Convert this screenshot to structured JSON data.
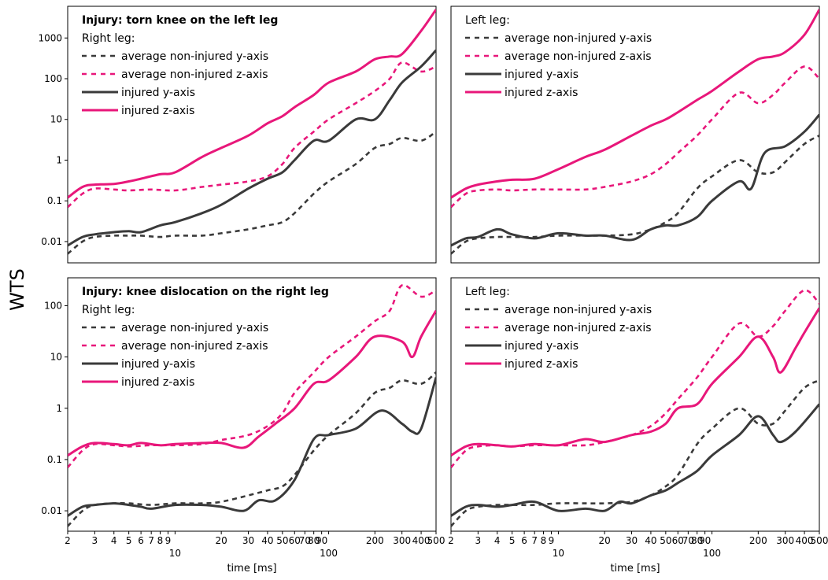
{
  "figure": {
    "ylabel": "WTS",
    "colors": {
      "y_axis": "#3a3a3a",
      "z_axis": "#e8177a"
    }
  },
  "chart_data": [
    {
      "type": "line",
      "panel": "top-left",
      "xscale": "log",
      "yscale": "log",
      "xlim": [
        2,
        500
      ],
      "ylim": [
        0.003,
        6000
      ],
      "xlabel": "time [ms]",
      "ylabel": "WTS",
      "xticks": [
        "2",
        "3",
        "4",
        "5",
        "6",
        "7",
        "8",
        "9",
        "10",
        "20",
        "30",
        "40",
        "50",
        "60",
        "70",
        "80",
        "90",
        "100",
        "200",
        "300",
        "400",
        "500"
      ],
      "xtick_labels_row2": [
        "10",
        "100"
      ],
      "yticks": [
        "0.01",
        "0.1",
        "1",
        "10",
        "100",
        "1000"
      ],
      "legend": {
        "title": "Injury: torn knee on the left leg",
        "subtitle": "Right leg:",
        "entries": [
          "average non-injured y-axis",
          "average non-injured z-axis",
          "injured y-axis",
          "injured z-axis"
        ]
      },
      "series": [
        {
          "name": "average non-injured y-axis",
          "style": "dashed",
          "color": "#3a3a3a",
          "x": [
            2,
            2.5,
            3,
            4,
            5,
            6,
            8,
            10,
            15,
            20,
            30,
            40,
            50,
            60,
            80,
            100,
            150,
            200,
            250,
            300,
            400,
            500
          ],
          "values": [
            0.005,
            0.01,
            0.013,
            0.014,
            0.014,
            0.014,
            0.013,
            0.014,
            0.014,
            0.016,
            0.02,
            0.025,
            0.03,
            0.05,
            0.15,
            0.3,
            0.8,
            2,
            2.5,
            3.5,
            3,
            5
          ]
        },
        {
          "name": "average non-injured z-axis",
          "style": "dashed",
          "color": "#e8177a",
          "x": [
            2,
            2.5,
            3,
            4,
            5,
            7,
            10,
            15,
            20,
            30,
            40,
            50,
            60,
            80,
            100,
            150,
            200,
            250,
            300,
            400,
            500
          ],
          "values": [
            0.07,
            0.15,
            0.2,
            0.19,
            0.18,
            0.19,
            0.18,
            0.22,
            0.25,
            0.3,
            0.4,
            0.8,
            2,
            5,
            10,
            25,
            50,
            100,
            250,
            150,
            200
          ]
        },
        {
          "name": "injured y-axis",
          "style": "solid",
          "color": "#3a3a3a",
          "x": [
            2,
            2.5,
            3,
            4,
            5,
            6,
            8,
            10,
            15,
            20,
            30,
            40,
            50,
            60,
            80,
            100,
            150,
            200,
            250,
            300,
            400,
            500
          ],
          "values": [
            0.008,
            0.013,
            0.015,
            0.017,
            0.018,
            0.017,
            0.025,
            0.03,
            0.05,
            0.08,
            0.2,
            0.35,
            0.5,
            1,
            3,
            3,
            10,
            10,
            30,
            80,
            200,
            500
          ]
        },
        {
          "name": "injured z-axis",
          "style": "solid",
          "color": "#e8177a",
          "x": [
            2,
            2.5,
            3,
            4,
            5,
            6,
            8,
            10,
            15,
            20,
            30,
            40,
            50,
            60,
            80,
            100,
            150,
            200,
            250,
            300,
            400,
            500
          ],
          "values": [
            0.12,
            0.22,
            0.25,
            0.26,
            0.3,
            0.35,
            0.45,
            0.5,
            1.2,
            2,
            4,
            8,
            12,
            20,
            40,
            80,
            150,
            300,
            350,
            400,
            1500,
            5000
          ]
        }
      ]
    },
    {
      "type": "line",
      "panel": "top-right",
      "xscale": "log",
      "yscale": "log",
      "xlim": [
        2,
        500
      ],
      "ylim": [
        0.003,
        6000
      ],
      "xlabel": "time [ms]",
      "xticks": [
        "2",
        "3",
        "4",
        "5",
        "6",
        "7",
        "8",
        "9",
        "10",
        "20",
        "30",
        "40",
        "50",
        "60",
        "70",
        "80",
        "90",
        "100",
        "200",
        "300",
        "400",
        "500"
      ],
      "xtick_labels_row2": [
        "10",
        "100"
      ],
      "legend": {
        "title": "",
        "subtitle": "Left leg:",
        "entries": [
          "average non-injured y-axis",
          "average non-injured z-axis",
          "injured y-axis",
          "injured z-axis"
        ]
      },
      "series": [
        {
          "name": "average non-injured y-axis",
          "style": "dashed",
          "color": "#3a3a3a",
          "x": [
            2,
            2.5,
            3,
            4,
            5,
            7,
            10,
            15,
            20,
            30,
            40,
            50,
            60,
            80,
            100,
            150,
            200,
            250,
            300,
            400,
            500
          ],
          "values": [
            0.005,
            0.01,
            0.012,
            0.013,
            0.013,
            0.013,
            0.014,
            0.014,
            0.014,
            0.015,
            0.02,
            0.03,
            0.05,
            0.2,
            0.4,
            1,
            0.5,
            0.5,
            0.9,
            2.5,
            4
          ]
        },
        {
          "name": "average non-injured z-axis",
          "style": "dashed",
          "color": "#e8177a",
          "x": [
            2,
            2.5,
            3,
            4,
            5,
            7,
            10,
            15,
            20,
            30,
            40,
            50,
            60,
            80,
            100,
            150,
            200,
            250,
            300,
            400,
            500
          ],
          "values": [
            0.07,
            0.15,
            0.18,
            0.19,
            0.18,
            0.19,
            0.19,
            0.19,
            0.22,
            0.3,
            0.45,
            0.8,
            1.5,
            4,
            10,
            45,
            25,
            40,
            80,
            200,
            100
          ]
        },
        {
          "name": "injured y-axis",
          "style": "solid",
          "color": "#3a3a3a",
          "x": [
            2,
            2.5,
            3,
            4,
            5,
            7,
            10,
            15,
            20,
            30,
            40,
            50,
            60,
            80,
            100,
            150,
            180,
            220,
            300,
            400,
            500
          ],
          "values": [
            0.008,
            0.012,
            0.013,
            0.02,
            0.015,
            0.012,
            0.016,
            0.014,
            0.014,
            0.011,
            0.02,
            0.025,
            0.025,
            0.04,
            0.1,
            0.3,
            0.2,
            1.5,
            2.2,
            5,
            13
          ]
        },
        {
          "name": "injured z-axis",
          "style": "solid",
          "color": "#e8177a",
          "x": [
            2,
            2.5,
            3,
            4,
            5,
            7,
            10,
            15,
            20,
            30,
            40,
            50,
            60,
            80,
            100,
            150,
            200,
            250,
            300,
            400,
            500
          ],
          "values": [
            0.12,
            0.2,
            0.25,
            0.3,
            0.33,
            0.35,
            0.6,
            1.2,
            1.8,
            4,
            7,
            10,
            15,
            30,
            50,
            150,
            300,
            350,
            450,
            1200,
            5000
          ]
        }
      ]
    },
    {
      "type": "line",
      "panel": "bottom-left",
      "xscale": "log",
      "yscale": "log",
      "xlim": [
        2,
        500
      ],
      "ylim": [
        0.004,
        350
      ],
      "xlabel": "time [ms]",
      "ylabel": "WTS",
      "xticks": [
        "2",
        "3",
        "4",
        "5",
        "6",
        "7",
        "8",
        "9",
        "10",
        "20",
        "30",
        "40",
        "50",
        "60",
        "70",
        "80",
        "90",
        "100",
        "200",
        "300",
        "400",
        "500"
      ],
      "xtick_labels_row2": [
        "10",
        "100"
      ],
      "yticks": [
        "0.01",
        "0.1",
        "1",
        "10",
        "100"
      ],
      "legend": {
        "title": "Injury: knee dislocation on the right leg",
        "subtitle": "Right leg:",
        "entries": [
          "average non-injured y-axis",
          "average non-injured z-axis",
          "injured y-axis",
          "injured z-axis"
        ]
      },
      "series": [
        {
          "name": "average non-injured y-axis",
          "style": "dashed",
          "color": "#3a3a3a",
          "x": [
            2,
            2.5,
            3,
            4,
            5,
            7,
            10,
            15,
            20,
            30,
            40,
            50,
            60,
            80,
            100,
            150,
            200,
            250,
            300,
            400,
            500
          ],
          "values": [
            0.005,
            0.01,
            0.013,
            0.014,
            0.014,
            0.013,
            0.014,
            0.014,
            0.015,
            0.02,
            0.025,
            0.03,
            0.05,
            0.15,
            0.3,
            0.8,
            2,
            2.5,
            3.5,
            3,
            5
          ]
        },
        {
          "name": "average non-injured z-axis",
          "style": "dashed",
          "color": "#e8177a",
          "x": [
            2,
            2.5,
            3,
            4,
            5,
            7,
            10,
            15,
            20,
            30,
            40,
            50,
            60,
            80,
            100,
            150,
            200,
            250,
            300,
            400,
            500
          ],
          "values": [
            0.07,
            0.15,
            0.2,
            0.19,
            0.18,
            0.19,
            0.19,
            0.2,
            0.24,
            0.3,
            0.45,
            0.8,
            2,
            5,
            10,
            25,
            50,
            80,
            250,
            150,
            200
          ]
        },
        {
          "name": "injured y-axis",
          "style": "solid",
          "color": "#3a3a3a",
          "x": [
            2,
            2.5,
            3,
            4,
            5,
            6,
            7,
            10,
            15,
            20,
            28,
            35,
            45,
            60,
            80,
            100,
            150,
            220,
            300,
            350,
            400,
            500
          ],
          "values": [
            0.008,
            0.012,
            0.013,
            0.014,
            0.013,
            0.012,
            0.011,
            0.013,
            0.013,
            0.012,
            0.01,
            0.016,
            0.016,
            0.04,
            0.25,
            0.3,
            0.4,
            0.9,
            0.5,
            0.35,
            0.4,
            4
          ]
        },
        {
          "name": "injured z-axis",
          "style": "solid",
          "color": "#e8177a",
          "x": [
            2,
            2.5,
            3,
            4,
            5,
            6,
            8,
            10,
            15,
            20,
            28,
            35,
            45,
            60,
            80,
            100,
            150,
            200,
            300,
            350,
            400,
            500
          ],
          "values": [
            0.12,
            0.18,
            0.21,
            0.2,
            0.19,
            0.21,
            0.19,
            0.2,
            0.21,
            0.21,
            0.17,
            0.28,
            0.5,
            1.0,
            3,
            3.5,
            10,
            25,
            20,
            10,
            25,
            80
          ]
        }
      ]
    },
    {
      "type": "line",
      "panel": "bottom-right",
      "xscale": "log",
      "yscale": "log",
      "xlim": [
        2,
        500
      ],
      "ylim": [
        0.004,
        350
      ],
      "xlabel": "time [ms]",
      "xticks": [
        "2",
        "3",
        "4",
        "5",
        "6",
        "7",
        "8",
        "9",
        "10",
        "20",
        "30",
        "40",
        "50",
        "60",
        "70",
        "80",
        "90",
        "100",
        "200",
        "300",
        "400",
        "500"
      ],
      "xtick_labels_row2": [
        "10",
        "100"
      ],
      "legend": {
        "title": "",
        "subtitle": "Left leg:",
        "entries": [
          "average non-injured y-axis",
          "average non-injured z-axis",
          "injured y-axis",
          "injured z-axis"
        ]
      },
      "series": [
        {
          "name": "average non-injured y-axis",
          "style": "dashed",
          "color": "#3a3a3a",
          "x": [
            2,
            2.5,
            3,
            4,
            5,
            7,
            10,
            15,
            20,
            30,
            40,
            50,
            60,
            80,
            100,
            150,
            200,
            250,
            300,
            400,
            500
          ],
          "values": [
            0.005,
            0.01,
            0.012,
            0.013,
            0.013,
            0.013,
            0.014,
            0.014,
            0.014,
            0.015,
            0.02,
            0.03,
            0.05,
            0.2,
            0.4,
            1,
            0.5,
            0.5,
            0.9,
            2.5,
            3.5
          ]
        },
        {
          "name": "average non-injured z-axis",
          "style": "dashed",
          "color": "#e8177a",
          "x": [
            2,
            2.5,
            3,
            4,
            5,
            7,
            10,
            15,
            20,
            30,
            40,
            50,
            60,
            80,
            100,
            150,
            200,
            250,
            300,
            400,
            500
          ],
          "values": [
            0.07,
            0.15,
            0.18,
            0.19,
            0.18,
            0.19,
            0.19,
            0.19,
            0.22,
            0.3,
            0.45,
            0.8,
            1.5,
            4,
            10,
            45,
            25,
            40,
            80,
            200,
            110
          ]
        },
        {
          "name": "injured y-axis",
          "style": "solid",
          "color": "#3a3a3a",
          "x": [
            2,
            2.5,
            3,
            4,
            5,
            7,
            10,
            15,
            20,
            25,
            30,
            40,
            50,
            60,
            80,
            100,
            150,
            200,
            250,
            280,
            350,
            500
          ],
          "values": [
            0.008,
            0.012,
            0.013,
            0.012,
            0.013,
            0.015,
            0.01,
            0.011,
            0.01,
            0.015,
            0.014,
            0.02,
            0.025,
            0.035,
            0.06,
            0.12,
            0.3,
            0.7,
            0.3,
            0.22,
            0.35,
            1.2
          ]
        },
        {
          "name": "injured z-axis",
          "style": "solid",
          "color": "#e8177a",
          "x": [
            2,
            2.5,
            3,
            4,
            5,
            7,
            10,
            15,
            20,
            30,
            40,
            50,
            60,
            80,
            100,
            150,
            200,
            250,
            280,
            350,
            400,
            500
          ],
          "values": [
            0.12,
            0.18,
            0.2,
            0.19,
            0.18,
            0.2,
            0.19,
            0.25,
            0.22,
            0.3,
            0.35,
            0.5,
            1,
            1.2,
            3,
            10,
            25,
            10,
            5,
            15,
            30,
            90
          ]
        }
      ]
    }
  ]
}
